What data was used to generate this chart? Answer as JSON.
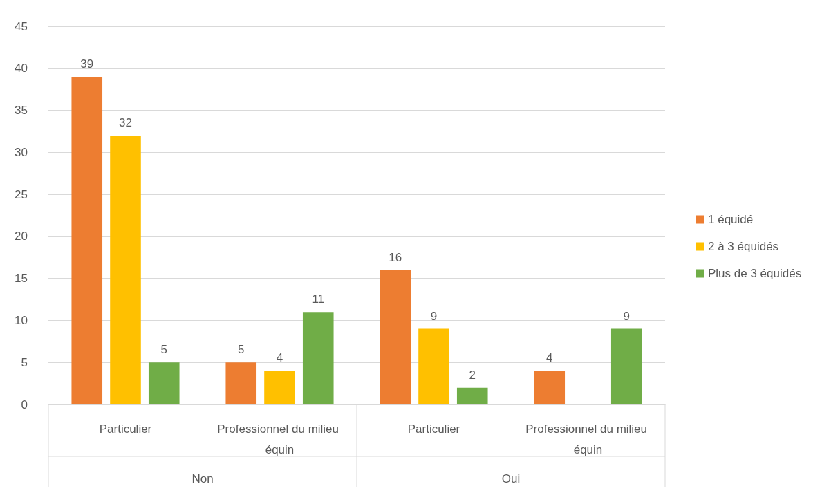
{
  "chart_data": {
    "type": "bar",
    "categories": [
      "Particulier",
      "Professionnel du milieu équin",
      "Particulier",
      "Professionnel du milieu équin"
    ],
    "series": [
      {
        "name": "1 équidé",
        "color": "#ed7d31",
        "values": [
          39,
          5,
          16,
          4
        ]
      },
      {
        "name": "2 à 3 équidés",
        "color": "#ffc000",
        "values": [
          32,
          4,
          9,
          null
        ]
      },
      {
        "name": "Plus de 3 équidés",
        "color": "#70ad47",
        "values": [
          5,
          11,
          2,
          9
        ]
      }
    ],
    "annotations": [
      "Non",
      "Oui"
    ],
    "ylim": [
      0,
      45
    ],
    "yticks": [
      0,
      5,
      10,
      15,
      20,
      25,
      30,
      35,
      40,
      45
    ],
    "grid": "y",
    "legend": "right",
    "data_labels": true
  }
}
